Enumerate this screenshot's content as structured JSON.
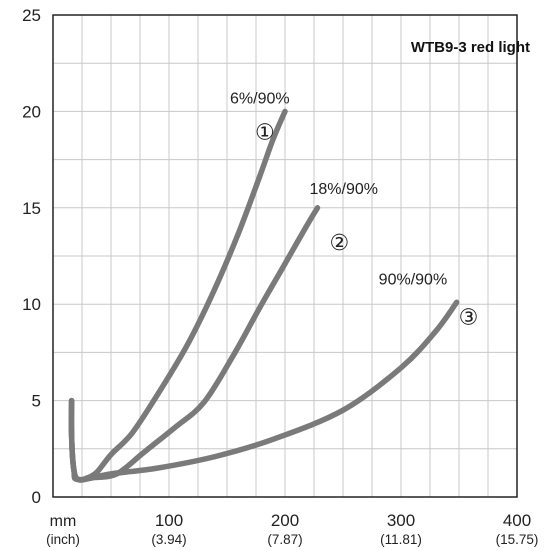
{
  "chart_data": {
    "type": "line",
    "title": "WTB9-3 red light",
    "x_unit": "mm",
    "x_unit_alt": "(inch)",
    "xlim": [
      0,
      400
    ],
    "ylim": [
      0,
      25
    ],
    "grid": true,
    "x_ticks": [
      {
        "value": 100,
        "label": "100",
        "sub": "(3.94)"
      },
      {
        "value": 200,
        "label": "200",
        "sub": "(7.87)"
      },
      {
        "value": 300,
        "label": "300",
        "sub": "(11.81)"
      },
      {
        "value": 400,
        "label": "400",
        "sub": "(15.75)"
      }
    ],
    "y_ticks": [
      0,
      5,
      10,
      15,
      20,
      25
    ],
    "series": [
      {
        "name": "6%/90%",
        "marker": "①",
        "points": [
          [
            16,
            5
          ],
          [
            16,
            3.2
          ],
          [
            18,
            1.4
          ],
          [
            22,
            0.9
          ],
          [
            30,
            1.0
          ],
          [
            38,
            1.3
          ],
          [
            50,
            2.2
          ],
          [
            68,
            3.3
          ],
          [
            90,
            5.3
          ],
          [
            115,
            7.8
          ],
          [
            138,
            10.6
          ],
          [
            160,
            13.7
          ],
          [
            178,
            16.6
          ],
          [
            190,
            18.6
          ],
          [
            200,
            20
          ]
        ]
      },
      {
        "name": "18%/90%",
        "marker": "②",
        "points": [
          [
            16,
            5
          ],
          [
            16,
            3.2
          ],
          [
            18,
            1.4
          ],
          [
            22,
            0.9
          ],
          [
            35,
            1.0
          ],
          [
            55,
            1.2
          ],
          [
            78,
            2.3
          ],
          [
            105,
            3.6
          ],
          [
            130,
            4.9
          ],
          [
            155,
            7.3
          ],
          [
            178,
            9.8
          ],
          [
            200,
            12.1
          ],
          [
            218,
            14.0
          ],
          [
            228,
            15
          ]
        ]
      },
      {
        "name": "90%/90%",
        "marker": "③",
        "points": [
          [
            16,
            5
          ],
          [
            16,
            3.2
          ],
          [
            18,
            1.4
          ],
          [
            22,
            0.9
          ],
          [
            50,
            1.2
          ],
          [
            90,
            1.5
          ],
          [
            140,
            2.1
          ],
          [
            190,
            3.0
          ],
          [
            250,
            4.5
          ],
          [
            300,
            6.7
          ],
          [
            330,
            8.6
          ],
          [
            348,
            10.1
          ]
        ]
      }
    ]
  }
}
